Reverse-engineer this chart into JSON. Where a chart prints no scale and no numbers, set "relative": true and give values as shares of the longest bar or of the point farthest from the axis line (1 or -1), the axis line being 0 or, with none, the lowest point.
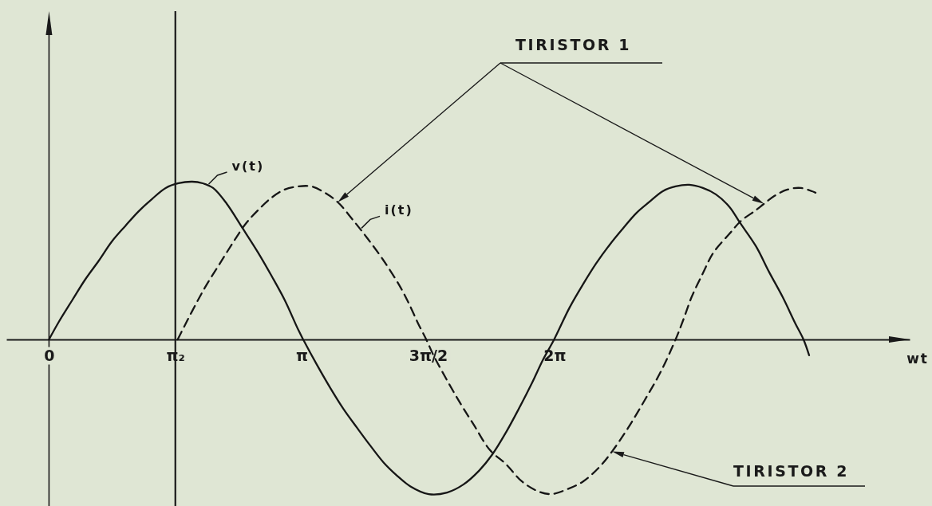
{
  "chart_data": {
    "type": "line",
    "relative": true,
    "xlabel": "wt",
    "tick_labels": "x",
    "xlim": [
      -0.53,
      10.7
    ],
    "xticks": [
      {
        "value": 0,
        "label": "0"
      },
      {
        "value": 1.5708,
        "label": "π₂"
      },
      {
        "value": 3.1416,
        "label": "π"
      },
      {
        "value": 4.7124,
        "label": "3π/2"
      },
      {
        "value": 6.2832,
        "label": "2π"
      }
    ],
    "ref_lines": [
      {
        "axis": "x",
        "value": 1.5708,
        "color": "#1a1a1a"
      }
    ],
    "annotations": [
      "TIRISTOR 1",
      "TIRISTOR 2"
    ],
    "series": [
      {
        "name": "v(t)",
        "color": "#161616",
        "line_style": "solid",
        "x": [
          0,
          0.12,
          0.29,
          0.45,
          0.62,
          0.78,
          0.95,
          1.11,
          1.28,
          1.45,
          1.61,
          1.78,
          1.91,
          2.04,
          2.21,
          2.4,
          2.6,
          2.77,
          2.93,
          3.1,
          3.16,
          3.33,
          3.5,
          3.66,
          3.83,
          3.99,
          4.16,
          4.32,
          4.49,
          4.72,
          4.95,
          5.15,
          5.35,
          5.51,
          5.68,
          5.84,
          6.01,
          6.14,
          6.28,
          6.47,
          6.64,
          6.8,
          6.97,
          7.13,
          7.3,
          7.46,
          7.63,
          7.79,
          7.96,
          8.13,
          8.29,
          8.46,
          8.59,
          8.79,
          8.95,
          9.12,
          9.28,
          9.38,
          9.45
        ],
        "values": [
          0,
          0.11,
          0.25,
          0.38,
          0.5,
          0.62,
          0.72,
          0.81,
          0.89,
          0.96,
          0.99,
          1,
          0.99,
          0.96,
          0.86,
          0.71,
          0.55,
          0.4,
          0.25,
          0.06,
          0,
          -0.16,
          -0.31,
          -0.44,
          -0.56,
          -0.67,
          -0.78,
          -0.86,
          -0.93,
          -0.98,
          -0.97,
          -0.92,
          -0.83,
          -0.73,
          -0.59,
          -0.44,
          -0.27,
          -0.13,
          0,
          0.2,
          0.35,
          0.48,
          0.6,
          0.7,
          0.8,
          0.87,
          0.94,
          0.97,
          0.98,
          0.96,
          0.92,
          0.84,
          0.74,
          0.59,
          0.43,
          0.27,
          0.1,
          0,
          -0.1
        ]
      },
      {
        "name": "i(t)",
        "color": "#161616",
        "line_style": "dashed",
        "x": [
          1.6,
          1.78,
          1.94,
          2.11,
          2.27,
          2.44,
          2.6,
          2.77,
          2.93,
          3.1,
          3.26,
          3.43,
          3.59,
          3.79,
          3.96,
          4.16,
          4.37,
          4.5,
          4.59,
          4.69,
          4.78,
          4.95,
          5.12,
          5.28,
          5.48,
          5.68,
          5.88,
          6.07,
          6.24,
          6.44,
          6.64,
          6.84,
          7,
          7.2,
          7.4,
          7.6,
          7.79,
          7.89,
          7.99,
          8.13,
          8.26,
          8.46,
          8.6,
          8.79,
          8.89,
          9.02,
          9.18,
          9.35,
          9.53
        ],
        "values": [
          0,
          0.18,
          0.33,
          0.47,
          0.6,
          0.73,
          0.82,
          0.9,
          0.95,
          0.97,
          0.97,
          0.93,
          0.87,
          0.75,
          0.64,
          0.5,
          0.33,
          0.2,
          0.1,
          0,
          -0.1,
          -0.26,
          -0.41,
          -0.54,
          -0.7,
          -0.79,
          -0.9,
          -0.96,
          -0.98,
          -0.95,
          -0.9,
          -0.81,
          -0.71,
          -0.56,
          -0.39,
          -0.21,
          0,
          0.13,
          0.27,
          0.42,
          0.55,
          0.67,
          0.75,
          0.82,
          0.86,
          0.91,
          0.95,
          0.96,
          0.93
        ]
      }
    ]
  }
}
